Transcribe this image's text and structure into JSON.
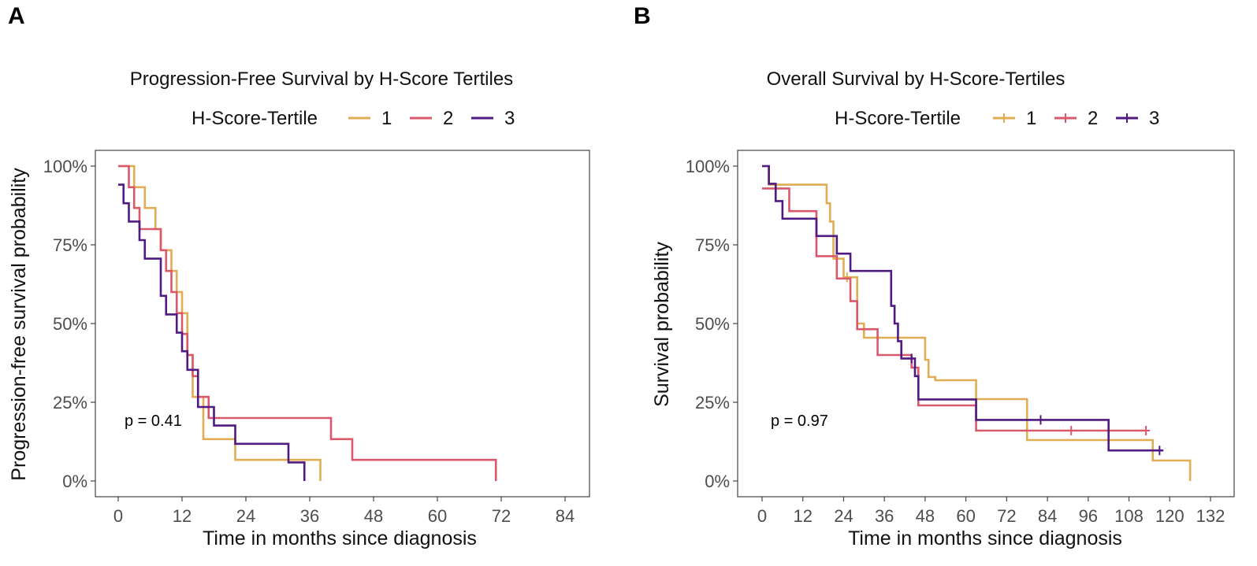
{
  "panels": [
    {
      "letter": "A",
      "chart_data": {
        "type": "line",
        "title": "Progression-Free Survival by H-Score Tertiles",
        "xlabel": "Time in months since diagnosis",
        "ylabel": "Progression-free survival probability",
        "xlim": [
          0,
          84
        ],
        "xticks": [
          0,
          12,
          24,
          36,
          48,
          60,
          72,
          84
        ],
        "ylim": [
          0,
          1
        ],
        "yticks": [
          0,
          0.25,
          0.5,
          0.75,
          1.0
        ],
        "ytick_labels": [
          "0%",
          "25%",
          "50%",
          "75%",
          "100%"
        ],
        "legend_title": "H-Score-Tertile",
        "legend_position": "top",
        "p_value": "p = 0.41",
        "series": [
          {
            "name": "1",
            "color": "#E0AC54",
            "x": [
              0,
              3,
              5,
              7,
              8,
              10,
              11,
              12,
              13,
              14,
              16,
              22,
              38
            ],
            "y": [
              1.0,
              0.933,
              0.867,
              0.8,
              0.733,
              0.667,
              0.6,
              0.533,
              0.4,
              0.267,
              0.133,
              0.067,
              0.0
            ],
            "censor_x": []
          },
          {
            "name": "2",
            "color": "#D9596B",
            "x": [
              0,
              2,
              3,
              4,
              8,
              9,
              10,
              11,
              12,
              13,
              14,
              15,
              17,
              18,
              40,
              44,
              71
            ],
            "y": [
              1.0,
              0.933,
              0.867,
              0.8,
              0.733,
              0.667,
              0.6,
              0.533,
              0.467,
              0.4,
              0.333,
              0.267,
              0.2,
              0.2,
              0.133,
              0.067,
              0.0
            ],
            "censor_x": []
          },
          {
            "name": "3",
            "color": "#4F1A82",
            "x": [
              0,
              1,
              2,
              4,
              5,
              8,
              9,
              11,
              12,
              13,
              15,
              18,
              22,
              32,
              35
            ],
            "y": [
              0.941,
              0.882,
              0.824,
              0.765,
              0.706,
              0.588,
              0.529,
              0.471,
              0.412,
              0.353,
              0.235,
              0.176,
              0.118,
              0.059,
              0.0
            ],
            "censor_x": []
          }
        ]
      }
    },
    {
      "letter": "B",
      "chart_data": {
        "type": "line",
        "title": "Overall Survival by H-Score-Tertiles",
        "xlabel": "Time in months since diagnosis",
        "ylabel": "Survival probability",
        "xlim": [
          0,
          132
        ],
        "xticks": [
          0,
          12,
          24,
          36,
          48,
          60,
          72,
          84,
          96,
          108,
          120,
          132
        ],
        "ylim": [
          0,
          1
        ],
        "yticks": [
          0,
          0.25,
          0.5,
          0.75,
          1.0
        ],
        "ytick_labels": [
          "0%",
          "25%",
          "50%",
          "75%",
          "100%"
        ],
        "legend_title": "H-Score-Tertile",
        "legend_position": "top",
        "p_value": "p = 0.97",
        "series": [
          {
            "name": "1",
            "color": "#E0AC54",
            "x": [
              0,
              2,
              19,
              20,
              21,
              24,
              28,
              30,
              48,
              49,
              51,
              63,
              78,
              84,
              115,
              126
            ],
            "y": [
              1.0,
              0.941,
              0.882,
              0.824,
              0.706,
              0.647,
              0.5,
              0.455,
              0.385,
              0.33,
              0.32,
              0.26,
              0.13,
              0.13,
              0.065,
              0.0
            ],
            "censor_x": [
              25
            ]
          },
          {
            "name": "2",
            "color": "#D9596B",
            "x": [
              0,
              3,
              8,
              16,
              19,
              22,
              26,
              28,
              34,
              44,
              46,
              63,
              113
            ],
            "y": [
              0.929,
              0.929,
              0.857,
              0.714,
              0.714,
              0.643,
              0.571,
              0.482,
              0.4,
              0.36,
              0.24,
              0.16,
              0.16
            ],
            "censor_x": [
              91,
              113
            ]
          },
          {
            "name": "3",
            "color": "#4F1A82",
            "x": [
              0,
              2,
              4,
              6,
              9,
              16,
              19,
              22,
              26,
              38,
              39,
              40,
              41,
              43,
              45,
              46,
              63,
              102,
              118
            ],
            "y": [
              1.0,
              0.944,
              0.889,
              0.833,
              0.833,
              0.778,
              0.778,
              0.722,
              0.667,
              0.556,
              0.5,
              0.444,
              0.389,
              0.389,
              0.333,
              0.259,
              0.194,
              0.097,
              0.097
            ],
            "censor_x": [
              44,
              82,
              117
            ]
          }
        ]
      }
    }
  ]
}
